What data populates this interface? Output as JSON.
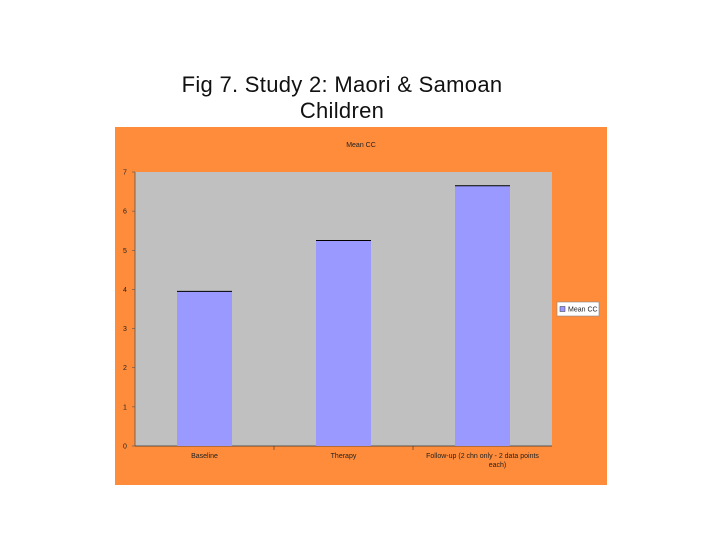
{
  "slide": {
    "title_line1": "Fig 7. Study 2: Maori & Samoan",
    "title_line2": "Children"
  },
  "colors": {
    "chart_background": "#ff8c3a",
    "plot_background": "#c0c0c0",
    "bar_fill": "#9999ff",
    "bar_stroke": "#000000",
    "legend_background": "#ffffff"
  },
  "chart_data": {
    "type": "bar",
    "title": "Mean CC",
    "categories": [
      "Baseline",
      "Therapy",
      "Follow-up (2 ch. only - 2 data points each)"
    ],
    "category_labels": [
      [
        "Baseline"
      ],
      [
        "Therapy"
      ],
      [
        "Follow-up   (2 chn only - 2 data points",
        "each)"
      ]
    ],
    "series": [
      {
        "name": "Mean CC",
        "values": [
          3.95,
          5.25,
          6.65
        ]
      }
    ],
    "ylim": [
      0,
      7
    ],
    "yticks": [
      0,
      1,
      2,
      3,
      4,
      5,
      6,
      7
    ],
    "xlabel": "",
    "ylabel": "",
    "grid": false,
    "legend": "right"
  }
}
